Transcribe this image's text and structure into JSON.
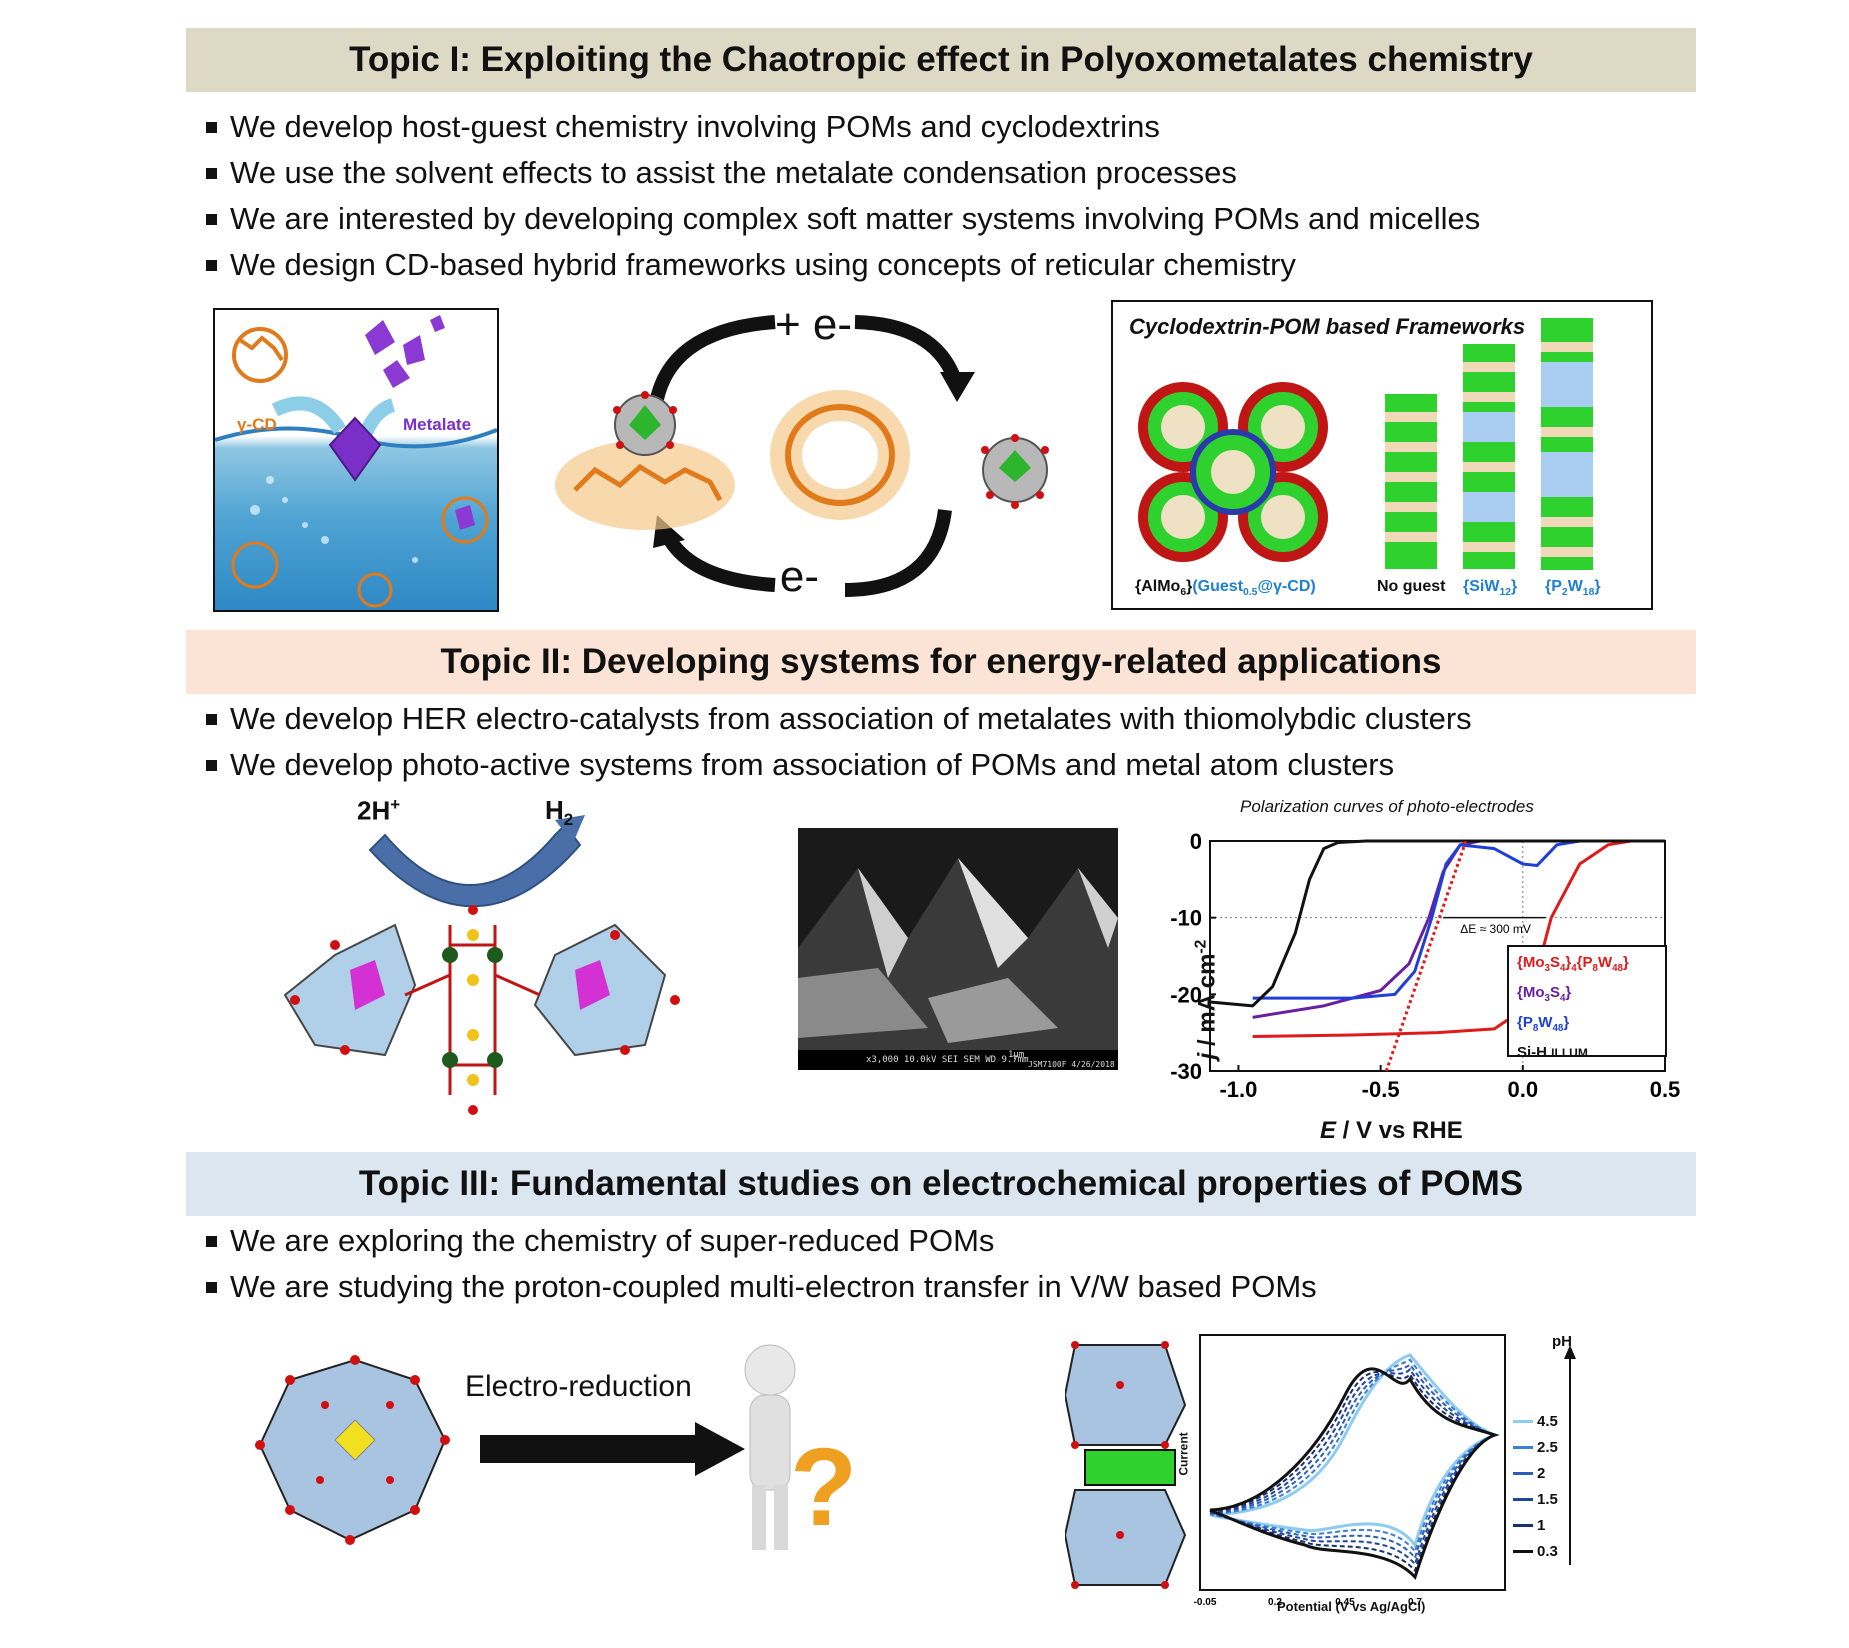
{
  "topics": [
    {
      "title": "Topic I: Exploiting the Chaotropic effect in Polyoxometalates chemistry",
      "bar_color": "#ddd9c4",
      "bullets": [
        "We develop host-guest chemistry involving POMs and cyclodextrins",
        "We use the solvent effects to assist the metalate condensation processes",
        "We are interested by developing complex soft matter systems involving POMs and micelles",
        "We design CD-based hybrid frameworks using concepts of reticular chemistry"
      ]
    },
    {
      "title": "Topic II: Developing systems for energy-related applications",
      "bar_color": "#fbe4d5",
      "bullets": [
        "We develop HER electro-catalysts from association of metalates with thiomolybdic clusters",
        "We develop photo-active systems from association of POMs and metal atom clusters"
      ]
    },
    {
      "title": "Topic III: Fundamental studies on electrochemical properties of POMS",
      "bar_color": "#dce6f1",
      "bullets": [
        "We are exploring the chemistry of super-reduced POMs",
        "We are studying the proton-coupled multi-electron transfer in V/W based POMs"
      ]
    }
  ],
  "fig1": {
    "cd_label": "γ-CD",
    "metalate_label": "Metalate",
    "plus_e": "+ e-",
    "minus_e": "- e-",
    "frameworks_title": "Cyclodextrin-POM based Frameworks",
    "fw_label_1a": "{AlMo",
    "fw_label_1a_sub": "6",
    "fw_label_1b": "}",
    "fw_label_2a": "(Guest",
    "fw_label_2a_sub": "0.5",
    "fw_label_2b": "@γ-CD)",
    "fw_label_3": "No guest",
    "fw_label_4a": "{SiW",
    "fw_label_4_sub": "12",
    "fw_label_4b": "}",
    "fw_label_5a": "{P",
    "fw_label_5_sub1": "2",
    "fw_label_5b": "W",
    "fw_label_5_sub2": "18",
    "fw_label_5c": "}"
  },
  "fig2": {
    "reactant": "2H",
    "reactant_sup": "+",
    "product": "H",
    "product_sub": "2",
    "sem_info": "x3,000   10.0kV SEI   SEM   WD 9.7mm",
    "sem_scale": "1μm",
    "sem_meta": "JSM7100F 4/26/2018"
  },
  "fig3": {
    "arrow_label": "Electro-reduction"
  },
  "chart_data": [
    {
      "type": "line",
      "title": "Polarization curves of photo-electrodes",
      "xlabel": "E / V vs RHE",
      "ylabel": "j / mA cm-2",
      "xlim": [
        -1.1,
        0.5
      ],
      "ylim": [
        -30,
        0
      ],
      "xticks": [
        "-1.0",
        "-0.5",
        "0.0",
        "0.5"
      ],
      "yticks": [
        "0",
        "-10",
        "-20",
        "-30"
      ],
      "annotation": "ΔE ≈ 300 mV",
      "legend": "inside-right",
      "series": [
        {
          "name": "{Mo3S4}4{P8W48}",
          "color": "#e0191b",
          "x": [
            -0.95,
            -0.6,
            -0.3,
            -0.1,
            0.0,
            0.05,
            0.1,
            0.2,
            0.3,
            0.38,
            0.5
          ],
          "y": [
            -25.5,
            -25.3,
            -25,
            -24.5,
            -22,
            -17,
            -10,
            -3,
            -0.5,
            0,
            0
          ]
        },
        {
          "name": "{Mo3S4}",
          "color": "#6a1fa1",
          "x": [
            -0.95,
            -0.7,
            -0.5,
            -0.4,
            -0.33,
            -0.28,
            -0.22,
            -0.15,
            0.0,
            0.5
          ],
          "y": [
            -23,
            -21.5,
            -19.5,
            -16,
            -10,
            -4,
            -0.5,
            0,
            0,
            0
          ]
        },
        {
          "name": "{P8W48}",
          "color": "#1f3fd6",
          "x": [
            -0.95,
            -0.6,
            -0.45,
            -0.38,
            -0.32,
            -0.27,
            -0.22,
            -0.1,
            0.0,
            0.05,
            0.12,
            0.2,
            0.5
          ],
          "y": [
            -20.5,
            -20.5,
            -20,
            -17,
            -10,
            -3,
            -0.5,
            -1,
            -3,
            -3.2,
            -0.5,
            0,
            0
          ]
        },
        {
          "name": "Si-H illum",
          "color": "#111111",
          "x": [
            -1.1,
            -0.95,
            -0.88,
            -0.8,
            -0.75,
            -0.7,
            -0.65,
            -0.55,
            -0.3,
            0.5
          ],
          "y": [
            -21,
            -21.5,
            -19,
            -12,
            -5,
            -1,
            -0.2,
            0,
            0,
            0
          ]
        }
      ]
    },
    {
      "type": "line",
      "xlabel": "Potential (V vs Ag/AgCl)",
      "ylabel": "Current",
      "xticks": [
        "-0.05",
        "0.2",
        "0.45",
        "0.7"
      ],
      "legend_title": "pH",
      "legend": "right",
      "series": [
        {
          "name": "4.5",
          "color": "#8ecbf0"
        },
        {
          "name": "2.5",
          "color": "#3a7fd6"
        },
        {
          "name": "2",
          "color": "#2a5fb8"
        },
        {
          "name": "1.5",
          "color": "#2244a0"
        },
        {
          "name": "1",
          "color": "#1a2f70"
        },
        {
          "name": "0.3",
          "color": "#111111"
        }
      ]
    }
  ]
}
